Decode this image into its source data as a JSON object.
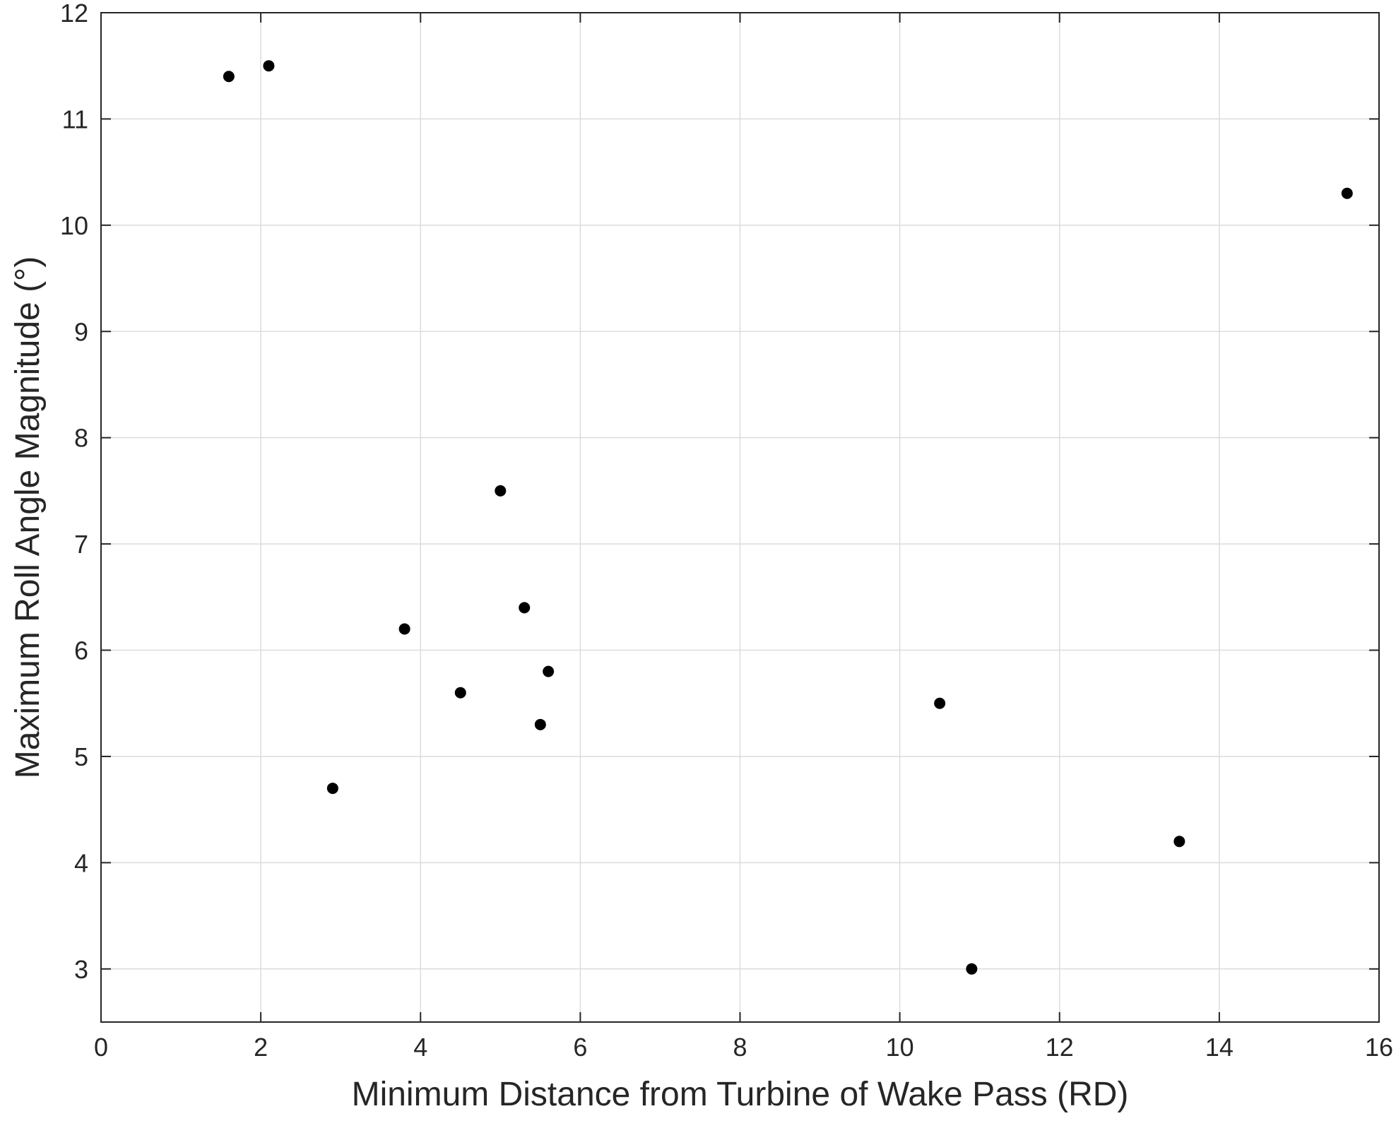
{
  "chart_data": {
    "type": "scatter",
    "xlabel": "Minimum Distance from Turbine of Wake Pass (RD)",
    "ylabel": "Maximum Roll Angle Magnitude (°)",
    "xlim": [
      0,
      16
    ],
    "ylim": [
      2.5,
      12
    ],
    "xticks": [
      0,
      2,
      4,
      6,
      8,
      10,
      12,
      14,
      16
    ],
    "yticks": [
      3,
      4,
      5,
      6,
      7,
      8,
      9,
      10,
      11,
      12
    ],
    "grid": true,
    "legend": "none",
    "marker_color": "#000000",
    "points": [
      {
        "x": 1.6,
        "y": 11.4
      },
      {
        "x": 2.1,
        "y": 11.5
      },
      {
        "x": 2.9,
        "y": 4.7
      },
      {
        "x": 3.8,
        "y": 6.2
      },
      {
        "x": 4.5,
        "y": 5.6
      },
      {
        "x": 5.0,
        "y": 7.5
      },
      {
        "x": 5.3,
        "y": 6.4
      },
      {
        "x": 5.5,
        "y": 5.3
      },
      {
        "x": 5.6,
        "y": 5.8
      },
      {
        "x": 10.5,
        "y": 5.5
      },
      {
        "x": 10.9,
        "y": 3.0
      },
      {
        "x": 13.5,
        "y": 4.2
      },
      {
        "x": 15.6,
        "y": 10.3
      }
    ]
  }
}
